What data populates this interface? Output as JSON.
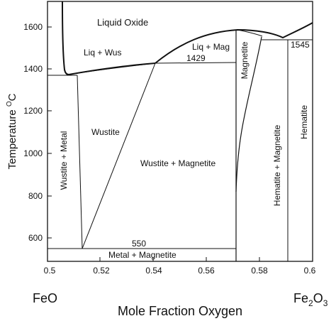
{
  "diagram": {
    "x_axis": {
      "label": "Mole Fraction Oxygen",
      "ticks": [
        "0.5",
        "0.52",
        "0.54",
        "0.56",
        "0.58",
        "0.6"
      ],
      "left_end_label": "FeO",
      "right_end_label_base": "Fe",
      "right_end_label_sub1": "2",
      "right_end_label_mid": "O",
      "right_end_label_sub2": "3"
    },
    "y_axis": {
      "label_main": "Temperature ",
      "label_sup": "O",
      "label_unit": "C",
      "ticks": [
        "600",
        "800",
        "1000",
        "1200",
        "1400",
        "1600"
      ]
    },
    "regions": {
      "liquid_oxide": "Liquid Oxide",
      "liq_wus": "Liq + Wus",
      "liq_mag": "Liq + Mag",
      "magnetite": "Magnetite",
      "wustite": "Wustite",
      "wustite_metal": "Wustite + Metal",
      "wustite_magnetite": "Wustite + Magnetite",
      "hematite_magnetite": "Hematite + Magnetite",
      "hematite": "Hematite",
      "metal_magnetite": "Metal + Magnetite"
    },
    "temps": {
      "t1429": "1429",
      "t1545": "1545",
      "t550": "550"
    }
  }
}
